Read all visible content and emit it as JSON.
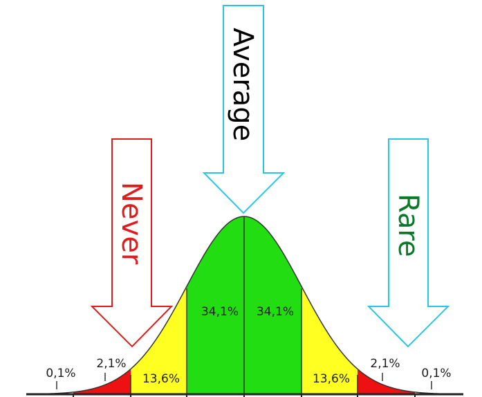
{
  "arrows": {
    "average": {
      "label": "Average",
      "outline": "#29c5e6",
      "text_color": "#000000"
    },
    "never": {
      "label": "Never",
      "outline": "#e01b1b",
      "text_color": "#e01b1b"
    },
    "rare": {
      "label": "Rare",
      "outline": "#29c5e6",
      "text_color": "#0a7a2a"
    }
  },
  "regions": {
    "center_left": {
      "label": "34,1%",
      "color": "#22dd11"
    },
    "center_right": {
      "label": "34,1%",
      "color": "#22dd11"
    },
    "mid_left": {
      "label": "13,6%",
      "color": "#ffff22"
    },
    "mid_right": {
      "label": "13,6%",
      "color": "#ffff22"
    },
    "tail_left": {
      "label": "2,1%",
      "color": "#ee1111"
    },
    "tail_right": {
      "label": "2,1%",
      "color": "#ee1111"
    },
    "far_left": {
      "label": "0,1%"
    },
    "far_right": {
      "label": "0,1%"
    }
  },
  "colors": {
    "curve": "#333333",
    "axis": "#222222"
  }
}
